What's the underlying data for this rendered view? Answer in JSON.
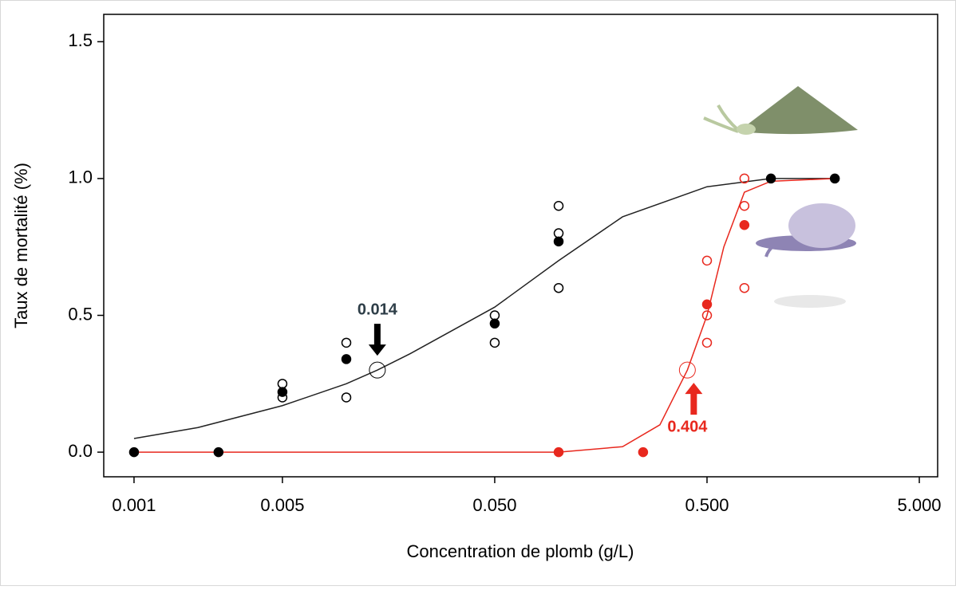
{
  "chart_data": {
    "type": "scatter",
    "x_label": "Concentration de plomb (g/L)",
    "y_label": "Taux de mortalité (%)",
    "x_log": true,
    "xlim": [
      0.00072,
      6.1
    ],
    "ylim": [
      -0.09,
      1.6
    ],
    "xticks": [
      0.001,
      0.005,
      {
        "value": 0.05,
        "label": "0.050"
      },
      {
        "value": 0.5,
        "label": "0.500"
      },
      {
        "value": 5,
        "label": "5.000"
      }
    ],
    "yticks": [
      {
        "value": 0,
        "label": "0.0"
      },
      0.5,
      {
        "value": 1,
        "label": "1.0"
      },
      1.5
    ],
    "curves": [
      {
        "color": "#222222",
        "x": [
          0.001,
          0.002,
          0.005,
          0.01,
          0.014,
          0.02,
          0.05,
          0.1,
          0.2,
          0.5,
          1.0,
          2.0
        ],
        "y": [
          0.05,
          0.09,
          0.17,
          0.25,
          0.3,
          0.36,
          0.53,
          0.7,
          0.86,
          0.97,
          1.0,
          1.0
        ]
      },
      {
        "color": "#e8281e",
        "x": [
          0.001,
          0.05,
          0.1,
          0.2,
          0.3,
          0.404,
          0.5,
          0.6,
          0.75,
          1.0,
          2.0
        ],
        "y": [
          0,
          0,
          0,
          0.02,
          0.1,
          0.3,
          0.5,
          0.75,
          0.95,
          0.99,
          1.0
        ]
      }
    ],
    "series": [
      {
        "color": "#000000",
        "marker": "open",
        "x": [
          0.005,
          0.005,
          0.01,
          0.01,
          0.05,
          0.05,
          0.1,
          0.1,
          0.1
        ],
        "y": [
          0.25,
          0.2,
          0.4,
          0.2,
          0.5,
          0.4,
          0.9,
          0.8,
          0.6
        ]
      },
      {
        "color": "#e8281e",
        "marker": "open",
        "x": [
          0.5,
          0.5,
          0.5,
          0.75,
          0.75,
          0.75
        ],
        "y": [
          0.7,
          0.5,
          0.4,
          1.0,
          0.9,
          0.6
        ]
      },
      {
        "color": "#e8281e",
        "marker": "filled",
        "x": [
          0.1,
          0.25,
          0.5,
          0.75
        ],
        "y": [
          0,
          0,
          0.54,
          0.83
        ]
      },
      {
        "color": "#000000",
        "marker": "filled",
        "x": [
          0.001,
          0.0025,
          0.005,
          0.01,
          0.05,
          0.1,
          1.0,
          2.0
        ],
        "y": [
          0,
          0,
          0.22,
          0.34,
          0.47,
          0.77,
          1.0,
          1.0
        ]
      },
      {
        "color": "#000000",
        "marker": "large-open",
        "x": [
          0.014
        ],
        "y": [
          0.3
        ]
      },
      {
        "color": "#e8281e",
        "marker": "large-open",
        "x": [
          0.404
        ],
        "y": [
          0.3
        ]
      }
    ],
    "annotations": [
      {
        "text": "0.014",
        "x": 0.014,
        "y": 0.3,
        "color": "#2e3e48",
        "direction": "down"
      },
      {
        "text": "0.404",
        "x": 0.404,
        "y": 0.3,
        "color": "#e8281e",
        "direction": "up"
      }
    ]
  }
}
